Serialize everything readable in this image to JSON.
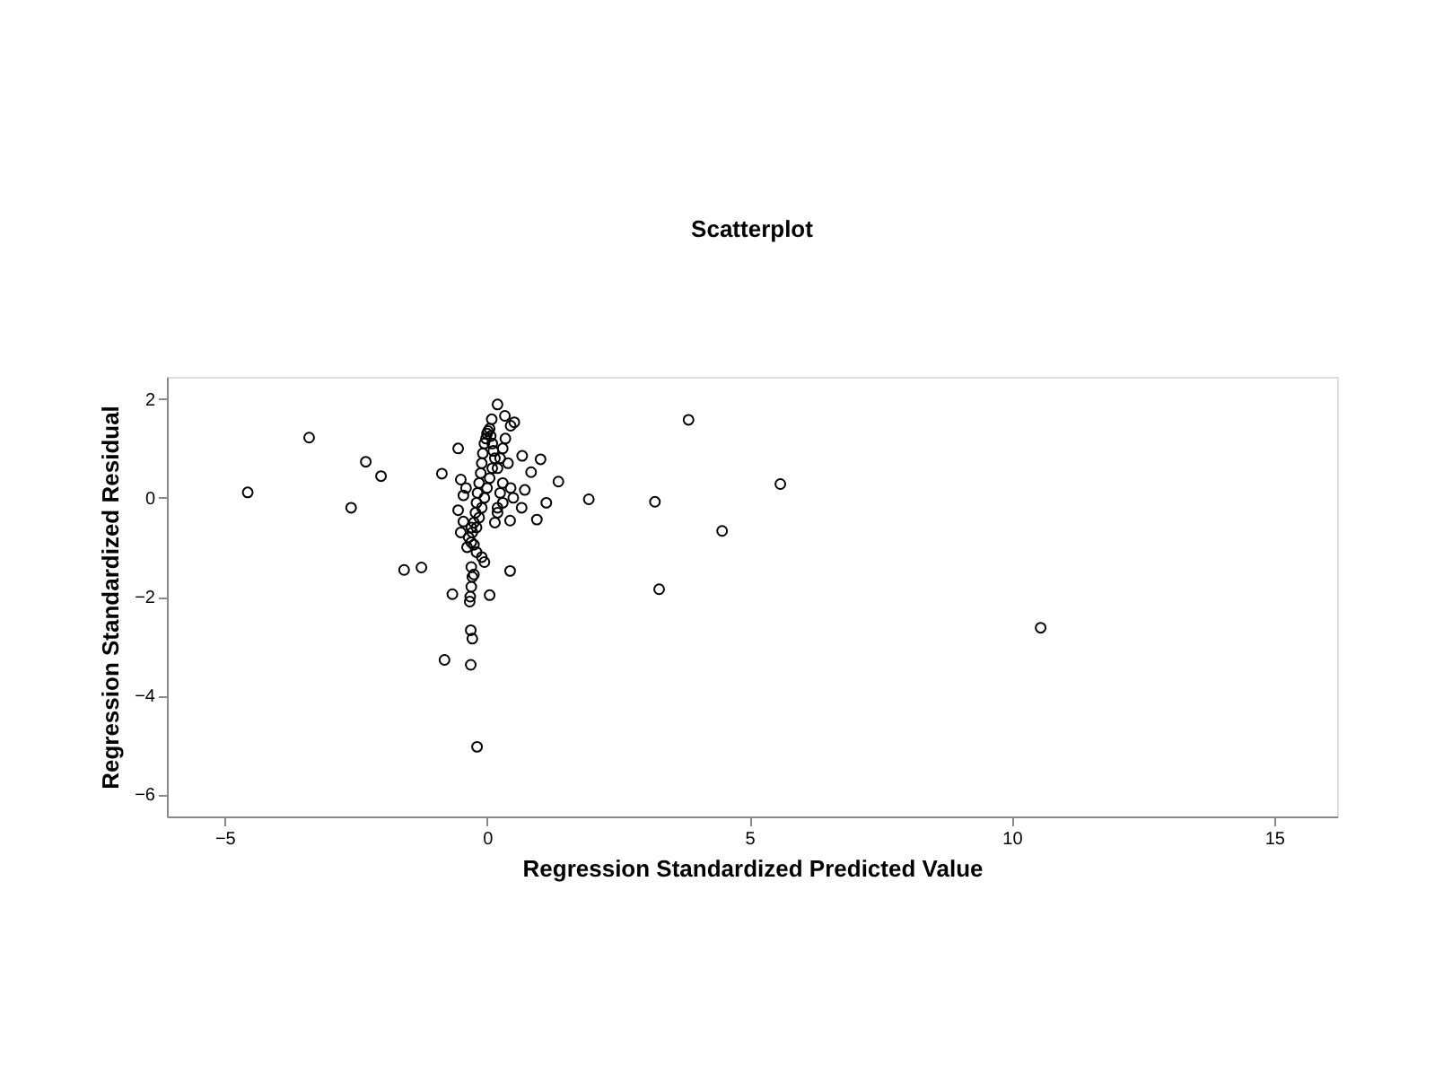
{
  "chart_data": {
    "type": "scatter",
    "title": "Scatterplot",
    "xlabel": "Regression Standardized Predicted Value",
    "ylabel": "Regression Standardized Residual",
    "x": [
      -4.56,
      -3.39,
      -2.31,
      -2.02,
      -2.59,
      -0.86,
      -0.55,
      -1.58,
      -1.25,
      -0.66,
      -0.81,
      -0.31,
      -0.19,
      -0.31,
      -0.28,
      0.05,
      0.44,
      3.84,
      5.59,
      4.48,
      3.28,
      3.2,
      1.94,
      10.55,
      1.36,
      1.13,
      0.95,
      1.02,
      0.84,
      0.67,
      0.72,
      0.66,
      0.44,
      0.2,
      0.34,
      0.45,
      0.52,
      0.09,
      -0.3,
      -0.28,
      -0.3,
      -0.32,
      -0.33,
      -0.25,
      -0.2,
      -0.1,
      -0.05,
      -0.45,
      -0.5,
      -0.5,
      -0.45,
      -0.4,
      -0.55,
      -0.3,
      -0.28,
      -0.25,
      -0.22,
      -0.2,
      -0.18,
      -0.15,
      -0.12,
      -0.1,
      -0.08,
      -0.05,
      -0.02,
      0.0,
      0.02,
      0.05,
      0.07,
      0.1,
      0.12,
      0.15,
      0.1,
      0.05,
      0.0,
      -0.05,
      -0.1,
      -0.15,
      -0.2,
      0.2,
      0.25,
      0.3,
      0.35,
      0.3,
      0.25,
      0.2,
      0.15,
      0.4,
      0.45,
      0.5,
      0.3,
      0.2,
      -0.35,
      -0.38,
      -0.3,
      -0.25
    ],
    "values": [
      0.11,
      1.22,
      0.73,
      0.44,
      -0.2,
      0.49,
      1.0,
      -1.46,
      -1.41,
      -1.95,
      -3.28,
      -3.38,
      -5.04,
      -2.68,
      -2.85,
      -1.97,
      -1.48,
      1.58,
      0.28,
      -0.67,
      -1.85,
      -0.08,
      -0.03,
      -2.63,
      0.33,
      -0.1,
      -0.44,
      0.78,
      0.52,
      0.85,
      0.16,
      -0.2,
      -0.46,
      1.89,
      1.66,
      1.46,
      1.53,
      1.59,
      -1.4,
      -1.6,
      -1.8,
      -2.0,
      -2.1,
      -1.55,
      -1.1,
      -1.2,
      -1.3,
      -0.48,
      0.37,
      -0.7,
      0.05,
      0.2,
      -0.25,
      -0.9,
      -0.7,
      -0.5,
      -0.3,
      -0.1,
      0.1,
      0.3,
      0.5,
      0.7,
      0.9,
      1.1,
      1.2,
      1.3,
      1.35,
      1.4,
      1.25,
      1.1,
      0.95,
      0.8,
      0.6,
      0.4,
      0.2,
      0.0,
      -0.2,
      -0.4,
      -0.6,
      0.6,
      0.8,
      1.0,
      1.2,
      0.3,
      0.1,
      -0.2,
      -0.5,
      0.7,
      0.2,
      0.0,
      -0.1,
      -0.3,
      -0.8,
      -1.0,
      -0.6,
      -0.95
    ],
    "color": "#000000",
    "marker": "circle",
    "grid": false,
    "xlim": [
      -6.1,
      16.2
    ],
    "xticks": [
      -5,
      0,
      5,
      10,
      15
    ],
    "ylim": [
      -6.45,
      2.45
    ],
    "yticks": [
      -6,
      -4,
      -2,
      0,
      2
    ]
  }
}
